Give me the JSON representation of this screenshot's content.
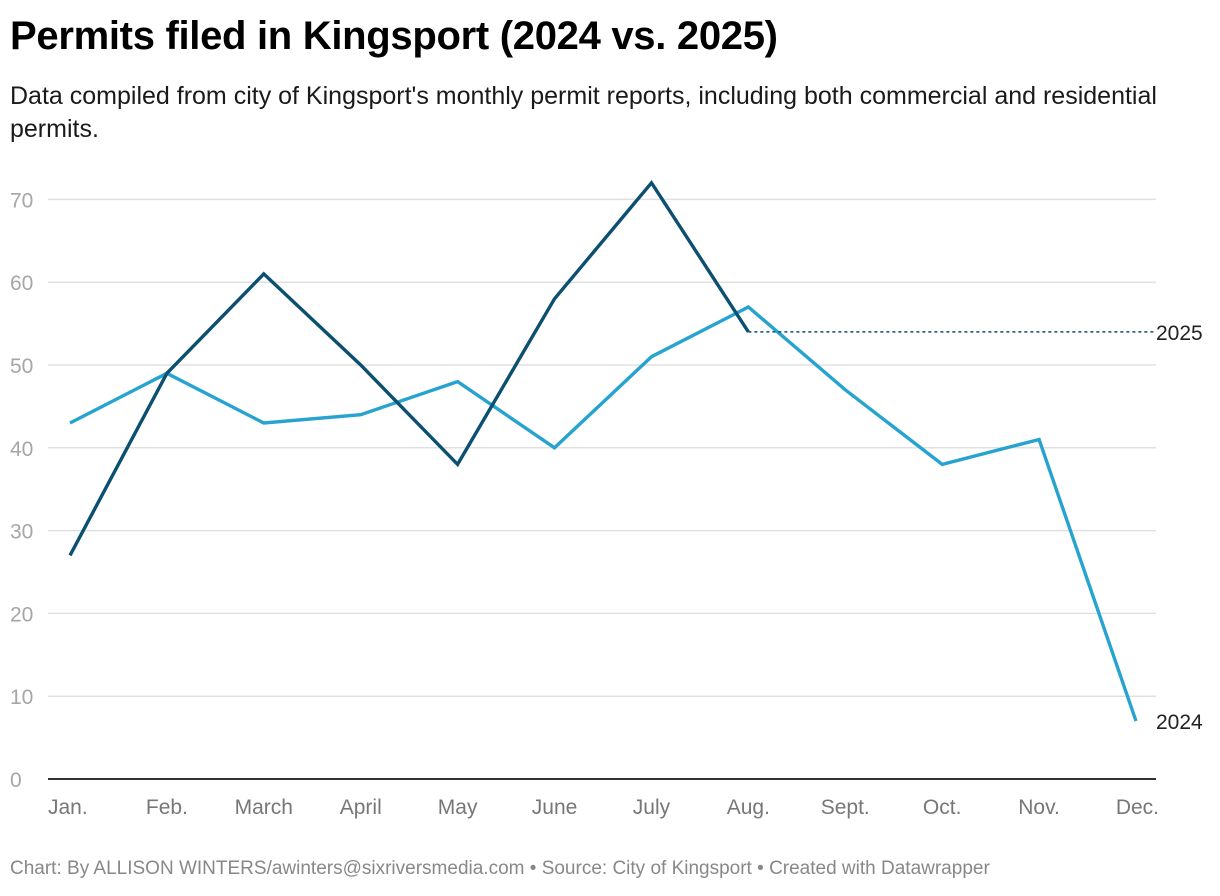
{
  "chart_data": {
    "type": "line",
    "title": "Permits filed in Kingsport (2024 vs. 2025)",
    "subtitle": "Data compiled from city of Kingsport's monthly permit reports, including both commercial and residential permits.",
    "categories": [
      "Jan.",
      "Feb.",
      "March",
      "April",
      "May",
      "June",
      "July",
      "Aug.",
      "Sept.",
      "Oct.",
      "Nov.",
      "Dec."
    ],
    "yticks": [
      0,
      10,
      20,
      30,
      40,
      50,
      60,
      70
    ],
    "ylim": [
      0,
      72
    ],
    "grid": true,
    "series": [
      {
        "name": "2024",
        "color": "#27a3cf",
        "values": [
          43,
          49,
          43,
          44,
          48,
          40,
          51,
          57,
          47,
          38,
          41,
          7
        ]
      },
      {
        "name": "2025",
        "color": "#0b4f71",
        "values": [
          27,
          49,
          61,
          50,
          38,
          58,
          72,
          54,
          null,
          null,
          null,
          null
        ],
        "reference_line": true
      }
    ],
    "xlabel": "",
    "ylabel": ""
  },
  "footer": {
    "chart_credit": "Chart: By ALLISON WINTERS/awinters@sixriversmedia.com",
    "source": "Source: City of Kingsport",
    "created_with": "Created with Datawrapper",
    "separator": "•"
  }
}
